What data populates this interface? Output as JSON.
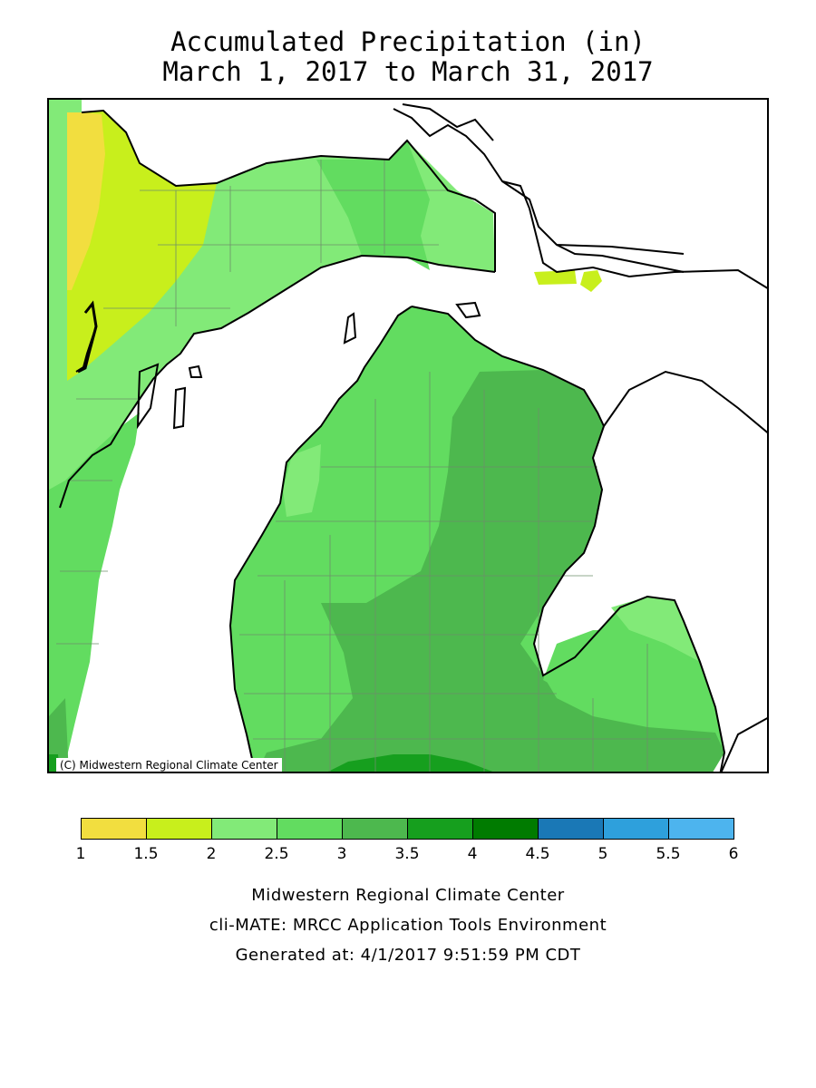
{
  "title": {
    "line1": "Accumulated Precipitation (in)",
    "line2": "March 1, 2017 to March 31, 2017"
  },
  "map": {
    "region": "Michigan",
    "copyright": "(C) Midwestern Regional Climate Center",
    "dominant_range_in": "2 to 4",
    "max_range_in": "3.5 to 4",
    "min_range_in": "1 to 1.5"
  },
  "legend": {
    "breaks": [
      "1",
      "1.5",
      "2",
      "2.5",
      "3",
      "3.5",
      "4",
      "4.5",
      "5",
      "5.5",
      "6"
    ],
    "colors": [
      "#f2de3f",
      "#c8ef1c",
      "#82ea78",
      "#62dc60",
      "#4db84e",
      "#169f1e",
      "#007b00",
      "#1a78b6",
      "#2ea0dc",
      "#4db4ee"
    ]
  },
  "footer": {
    "line1": "Midwestern Regional Climate Center",
    "line2": "cli-MATE: MRCC Application Tools Environment",
    "line3": "Generated at: 4/1/2017 9:51:59 PM CDT"
  }
}
